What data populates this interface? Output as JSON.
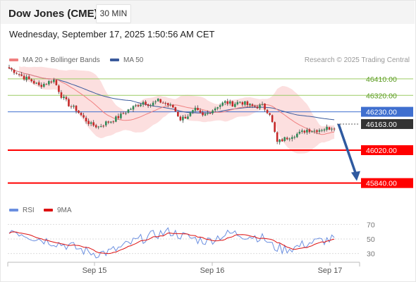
{
  "header": {
    "instrument": "Dow Jones (CME)",
    "timeframe": "30 MIN",
    "datetime": "Wednesday, September 17, 2025 1:50:56 AM CET"
  },
  "legend": {
    "ma20": "MA 20 + Bollinger Bands",
    "ma50": "MA 50",
    "credit": "Research © 2025 Trading Central",
    "rsi": "RSI",
    "rsi_ma": "9MA"
  },
  "colors": {
    "candle_up": "#2e8b57",
    "candle_down": "#c62828",
    "bollinger": "#fbd9d9",
    "ma20": "#f08080",
    "ma50": "#3a5a9c",
    "support": "#ff0000",
    "resistance": "#9ccc65",
    "pivot": "#3f6fcf",
    "current": "#333333",
    "arrow": "#2f5aa0",
    "rsi": "#6b8fe0",
    "rsi_ma": "#dd1111"
  },
  "chart_data": {
    "type": "candlestick",
    "ylim": [
      45750,
      46510
    ],
    "x_ticks": [
      "Sep 15",
      "Sep 16",
      "Sep 17"
    ],
    "levels": [
      {
        "label": "46410.00",
        "value": 46410,
        "kind": "resistance"
      },
      {
        "label": "46320.00",
        "value": 46320,
        "kind": "resistance"
      },
      {
        "label": "46230.00",
        "value": 46230,
        "kind": "pivot"
      },
      {
        "label": "46163.00",
        "value": 46163,
        "kind": "current"
      },
      {
        "label": "46020.00",
        "value": 46020,
        "kind": "support"
      },
      {
        "label": "45840.00",
        "value": 45840,
        "kind": "support"
      }
    ],
    "rsi_ticks": [
      70,
      50,
      30
    ],
    "rsi_ylim": [
      20,
      80
    ],
    "arrow": {
      "from": 46163,
      "to": 45840
    },
    "anchors": [
      [
        0,
        46468
      ],
      [
        3,
        46445
      ],
      [
        6,
        46418
      ],
      [
        9,
        46400
      ],
      [
        12,
        46372
      ],
      [
        15,
        46388
      ],
      [
        18,
        46405
      ],
      [
        21,
        46318
      ],
      [
        24,
        46270
      ],
      [
        27,
        46242
      ],
      [
        30,
        46195
      ],
      [
        33,
        46160
      ],
      [
        36,
        46148
      ],
      [
        39,
        46170
      ],
      [
        42,
        46185
      ],
      [
        45,
        46210
      ],
      [
        48,
        46240
      ],
      [
        51,
        46262
      ],
      [
        54,
        46285
      ],
      [
        57,
        46268
      ],
      [
        60,
        46290
      ],
      [
        63,
        46275
      ],
      [
        66,
        46255
      ],
      [
        69,
        46190
      ],
      [
        72,
        46210
      ],
      [
        75,
        46240
      ],
      [
        78,
        46205
      ],
      [
        81,
        46232
      ],
      [
        84,
        46262
      ],
      [
        87,
        46282
      ],
      [
        90,
        46272
      ],
      [
        93,
        46286
      ],
      [
        96,
        46268
      ],
      [
        99,
        46258
      ],
      [
        102,
        46262
      ],
      [
        105,
        46222
      ],
      [
        108,
        46062
      ],
      [
        111,
        46082
      ],
      [
        114,
        46102
      ],
      [
        117,
        46112
      ],
      [
        120,
        46132
      ],
      [
        123,
        46127
      ],
      [
        126,
        46137
      ],
      [
        129,
        46142
      ],
      [
        131,
        46150
      ]
    ],
    "rsi_anchors": [
      [
        0,
        63
      ],
      [
        5,
        58
      ],
      [
        10,
        52
      ],
      [
        15,
        48
      ],
      [
        20,
        44
      ],
      [
        25,
        40
      ],
      [
        30,
        34
      ],
      [
        35,
        30
      ],
      [
        40,
        32
      ],
      [
        45,
        38
      ],
      [
        50,
        46
      ],
      [
        55,
        52
      ],
      [
        60,
        57
      ],
      [
        65,
        60
      ],
      [
        70,
        54
      ],
      [
        75,
        50
      ],
      [
        80,
        47
      ],
      [
        85,
        54
      ],
      [
        90,
        58
      ],
      [
        95,
        55
      ],
      [
        100,
        53
      ],
      [
        103,
        50
      ],
      [
        106,
        40
      ],
      [
        110,
        36
      ],
      [
        115,
        38
      ],
      [
        120,
        44
      ],
      [
        125,
        47
      ],
      [
        131,
        50
      ]
    ]
  }
}
